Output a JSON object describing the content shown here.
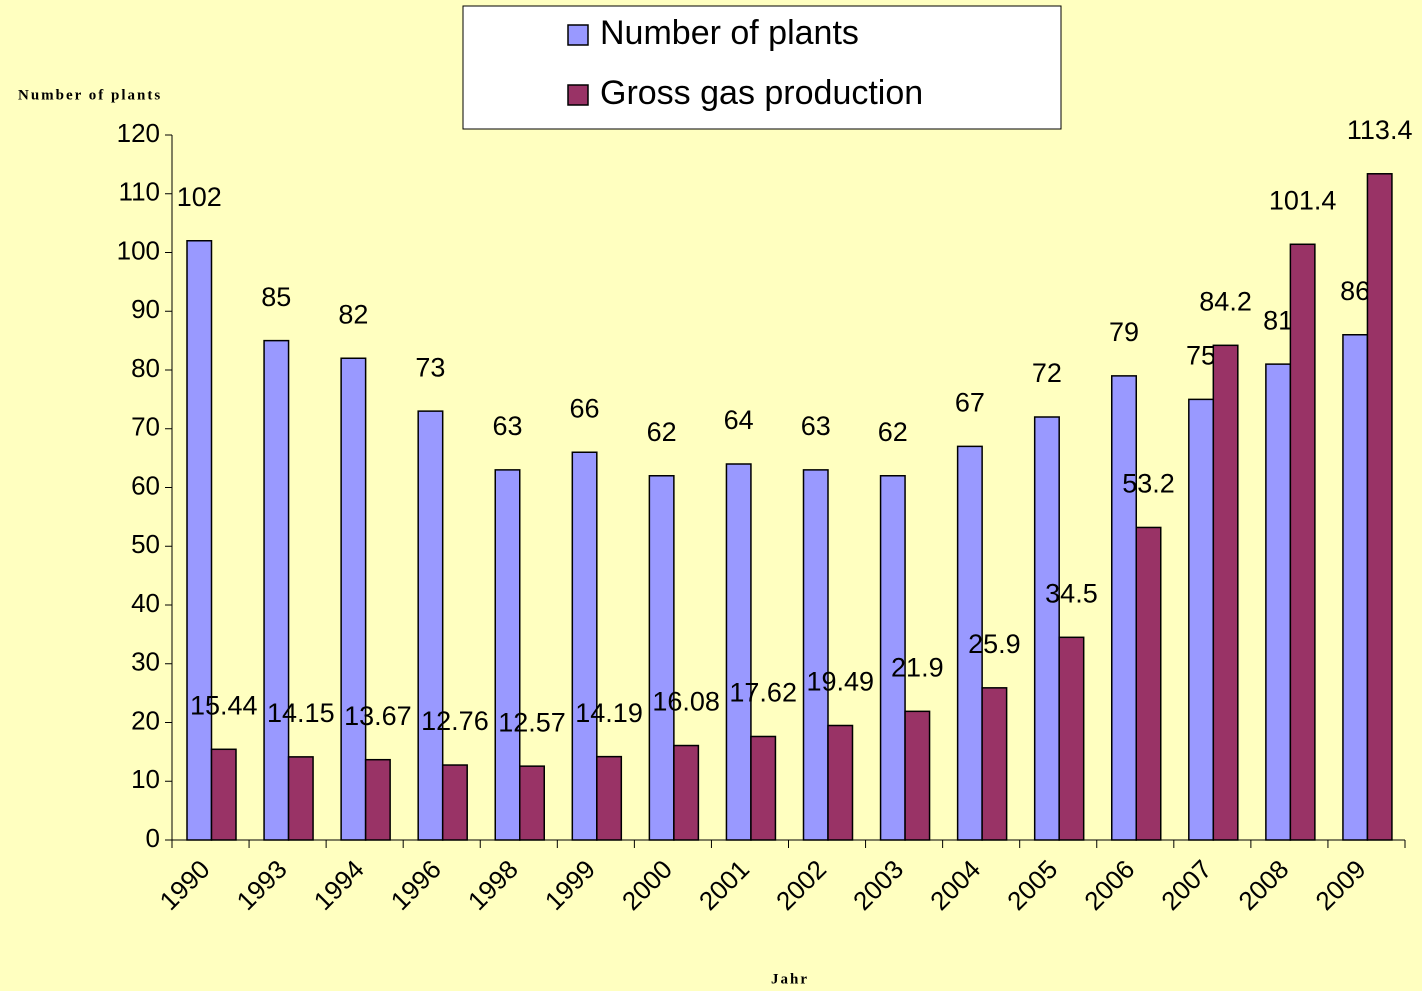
{
  "chart_data": {
    "type": "bar",
    "y_label": "Number of plants",
    "x_label": "Jahr",
    "categories": [
      "1990",
      "1993",
      "1994",
      "1996",
      "1998",
      "1999",
      "2000",
      "2001",
      "2002",
      "2003",
      "2004",
      "2005",
      "2006",
      "2007",
      "2008",
      "2009"
    ],
    "series": [
      {
        "name": "Number of plants",
        "color": "#9999ff",
        "values": [
          102,
          85,
          82,
          73,
          63,
          66,
          62,
          64,
          63,
          62,
          67,
          72,
          79,
          75,
          81,
          86
        ]
      },
      {
        "name": "Gross gas production",
        "color": "#993366",
        "values": [
          15.44,
          14.15,
          13.67,
          12.76,
          12.57,
          14.19,
          16.08,
          17.62,
          19.49,
          21.9,
          25.9,
          34.5,
          53.2,
          84.2,
          101.4,
          113.4
        ]
      }
    ],
    "ylim": [
      0,
      120
    ],
    "yticks": [
      0,
      10,
      20,
      30,
      40,
      50,
      60,
      70,
      80,
      90,
      100,
      110,
      120
    ],
    "legend": "top"
  }
}
